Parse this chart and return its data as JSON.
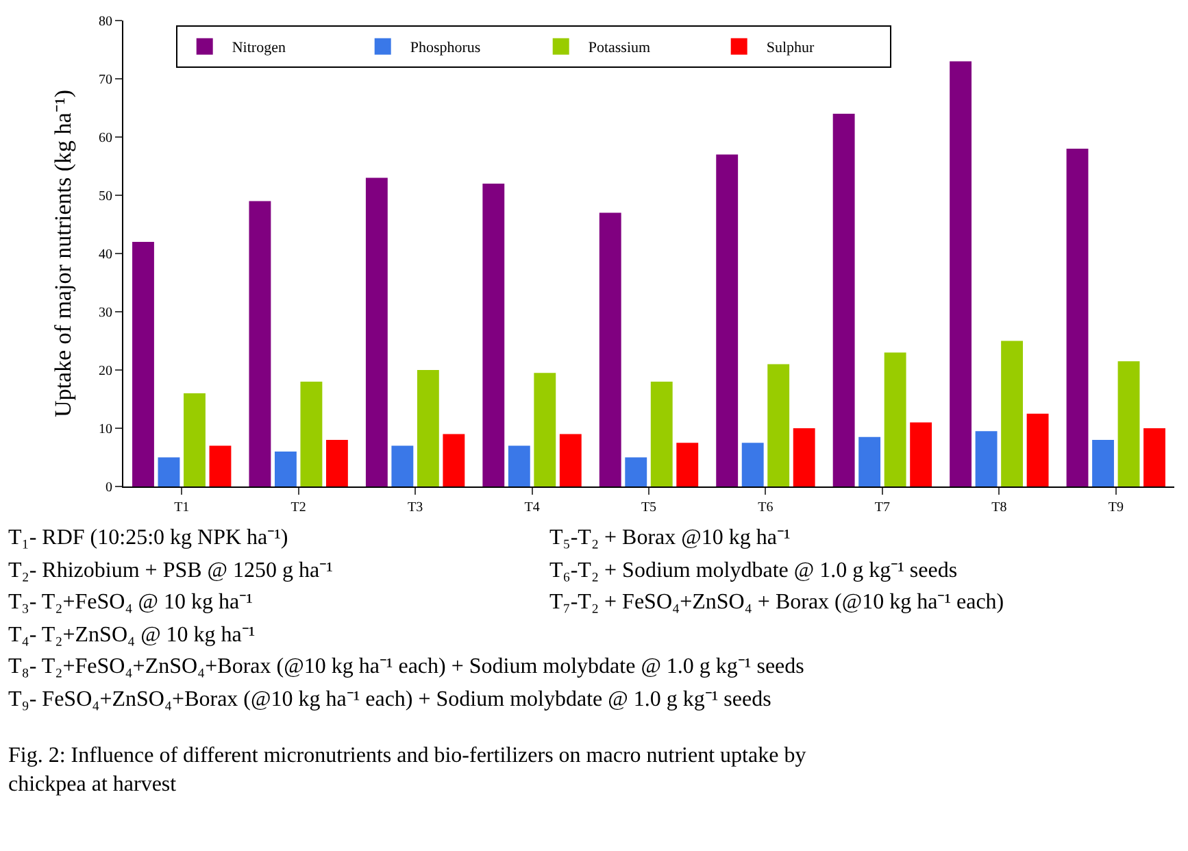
{
  "chart_data": {
    "type": "bar",
    "ylabel": "Uptake of major nutrients (kg ha⁻¹)",
    "categories": [
      "T1",
      "T2",
      "T3",
      "T4",
      "T5",
      "T6",
      "T7",
      "T8",
      "T9"
    ],
    "series": [
      {
        "name": "Nitrogen",
        "color": "#800080",
        "values": [
          42,
          49,
          53,
          52,
          47,
          57,
          64,
          73,
          58
        ]
      },
      {
        "name": "Phosphorus",
        "color": "#3a78e8",
        "values": [
          5,
          6,
          7,
          7,
          5,
          7.5,
          8.5,
          9.5,
          8
        ]
      },
      {
        "name": "Potassium",
        "color": "#99cc00",
        "values": [
          16,
          18,
          20,
          19.5,
          18,
          21,
          23,
          25,
          21.5
        ]
      },
      {
        "name": "Sulphur",
        "color": "#ff0000",
        "values": [
          7,
          8,
          9,
          9,
          7.5,
          10,
          11,
          12.5,
          10
        ]
      }
    ],
    "ylim": [
      0,
      80
    ],
    "yticks": [
      0,
      10,
      20,
      30,
      40,
      50,
      60,
      70,
      80
    ],
    "legend": "top",
    "annotations": [
      "T₁- RDF (10:25:0 kg NPK ha⁻¹)",
      "T₂- Rhizobium + PSB @ 1250 g ha⁻¹",
      "T₃- T₂+FeSO₄ @ 10 kg ha⁻¹",
      "T₄- T₂+ZnSO₄ @ 10 kg ha⁻¹",
      "T₅-T₂ + Borax @10 kg ha⁻¹",
      "T₆-T₂ + Sodium molydbate @ 1.0 g kg⁻¹ seeds",
      "T₇-T₂ + FeSO₄+ZnSO₄ + Borax (@10 kg ha⁻¹ each)",
      "T₈- T₂+FeSO₄+ZnSO₄+Borax (@10 kg ha⁻¹ each) + Sodium molybdate @ 1.0 g kg⁻¹ seeds",
      "T₉- FeSO₄+ZnSO₄+Borax (@10 kg ha⁻¹ each) + Sodium molybdate @ 1.0 g kg⁻¹ seeds",
      "Fig. 2: Influence of different micronutrients and bio-fertilizers on macro nutrient uptake by\nchickpea at harvest"
    ]
  }
}
